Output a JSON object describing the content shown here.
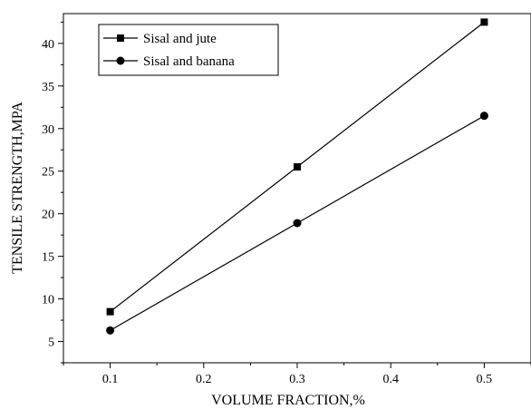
{
  "chart_data": {
    "type": "line",
    "title": "",
    "xlabel": "VOLUME FRACTION,%",
    "ylabel": "TENSILE STRENGTH,MPA",
    "x": [
      0.1,
      0.3,
      0.5
    ],
    "xlim": [
      0.05,
      0.55
    ],
    "ylim": [
      2.5,
      43.5
    ],
    "xticks": [
      0.1,
      0.2,
      0.3,
      0.4,
      0.5
    ],
    "xtick_labels": [
      "0.1",
      "0.2",
      "0.3",
      "0.4",
      "0.5"
    ],
    "yticks": [
      5,
      10,
      15,
      20,
      25,
      30,
      35,
      40
    ],
    "ytick_labels": [
      "5",
      "10",
      "15",
      "20",
      "25",
      "30",
      "35",
      "40"
    ],
    "grid": false,
    "legend_position": "top-left",
    "series": [
      {
        "name": "Sisal and jute",
        "marker": "square",
        "color": "#000000",
        "values": [
          8.5,
          25.5,
          42.5
        ]
      },
      {
        "name": "Sisal and banana",
        "marker": "circle",
        "color": "#000000",
        "values": [
          6.3,
          18.9,
          31.5
        ]
      }
    ]
  }
}
